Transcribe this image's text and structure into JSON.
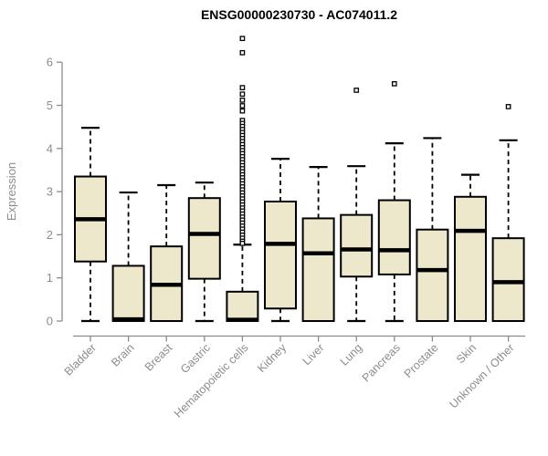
{
  "header": {
    "title": "ENSG00000230730 - AC074011.2"
  },
  "chart_data": {
    "type": "boxplot",
    "title": "ENSG00000230730 - AC074011.2",
    "xlabel": "",
    "ylabel": "Expression",
    "ylim": [
      0,
      6.6
    ],
    "yticks": [
      0,
      1,
      2,
      3,
      4,
      5,
      6
    ],
    "grid": false,
    "legend": "none",
    "x_label_rotation_deg": 45,
    "outlier_marker": "open-square",
    "colors": {
      "box_fill": "#EDE7CC",
      "box_border": "#000000",
      "median": "#000000",
      "whisker": "#000000",
      "axis": "#8C8C8C",
      "tick_text": "#8C8C8C",
      "title_text": "#000000",
      "outlier_fill": "#FFFFFF"
    },
    "categories": [
      "Bladder",
      "Brain",
      "Breast",
      "Gastric",
      "Hematopoietic cells",
      "Kidney",
      "Liver",
      "Lung",
      "Pancreas",
      "Prostate",
      "Skin",
      "Unknown / Other"
    ],
    "boxes": [
      {
        "category": "Bladder",
        "whisker_low": 0,
        "q1": 1.38,
        "median": 2.36,
        "q3": 3.35,
        "whisker_high": 4.48,
        "outliers": []
      },
      {
        "category": "Brain",
        "whisker_low": 0,
        "q1": 0,
        "median": 0.04,
        "q3": 1.28,
        "whisker_high": 2.98,
        "outliers": []
      },
      {
        "category": "Breast",
        "whisker_low": 0,
        "q1": 0,
        "median": 0.84,
        "q3": 1.73,
        "whisker_high": 3.15,
        "outliers": []
      },
      {
        "category": "Gastric",
        "whisker_low": 0,
        "q1": 0.98,
        "median": 2.02,
        "q3": 2.85,
        "whisker_high": 3.21,
        "outliers": []
      },
      {
        "category": "Hematopoietic cells",
        "whisker_low": 0,
        "q1": 0,
        "median": 0.03,
        "q3": 0.68,
        "whisker_high": 1.77,
        "outliers": [
          6.55,
          6.22,
          5.41,
          5.26,
          5.12,
          4.99,
          4.87,
          4.65,
          4.58,
          4.51,
          4.44,
          4.37,
          4.3,
          4.23,
          4.16,
          4.09,
          4.02,
          3.95,
          3.88,
          3.81,
          3.74,
          3.67,
          3.6,
          3.53,
          3.46,
          3.39,
          3.32,
          3.25,
          3.18,
          3.11,
          3.04,
          2.97,
          2.9,
          2.83,
          2.76,
          2.69,
          2.62,
          2.55,
          2.48,
          2.41,
          2.34,
          2.27,
          2.2,
          2.13,
          2.06,
          1.99,
          1.92,
          1.85,
          1.8
        ]
      },
      {
        "category": "Kidney",
        "whisker_low": 0,
        "q1": 0.29,
        "median": 1.79,
        "q3": 2.77,
        "whisker_high": 3.76,
        "outliers": []
      },
      {
        "category": "Liver",
        "whisker_low": 0,
        "q1": 0,
        "median": 1.57,
        "q3": 2.38,
        "whisker_high": 3.57,
        "outliers": []
      },
      {
        "category": "Lung",
        "whisker_low": 0,
        "q1": 1.03,
        "median": 1.66,
        "q3": 2.46,
        "whisker_high": 3.59,
        "outliers": [
          5.35
        ]
      },
      {
        "category": "Pancreas",
        "whisker_low": 0,
        "q1": 1.08,
        "median": 1.64,
        "q3": 2.8,
        "whisker_high": 4.12,
        "outliers": [
          5.5
        ]
      },
      {
        "category": "Prostate",
        "whisker_low": 0,
        "q1": 0,
        "median": 1.18,
        "q3": 2.12,
        "whisker_high": 4.24,
        "outliers": []
      },
      {
        "category": "Skin",
        "whisker_low": 0,
        "q1": 0,
        "median": 2.09,
        "q3": 2.88,
        "whisker_high": 3.39,
        "outliers": []
      },
      {
        "category": "Unknown / Other",
        "whisker_low": 0,
        "q1": 0,
        "median": 0.9,
        "q3": 1.92,
        "whisker_high": 4.19,
        "outliers": [
          4.97
        ]
      }
    ]
  }
}
